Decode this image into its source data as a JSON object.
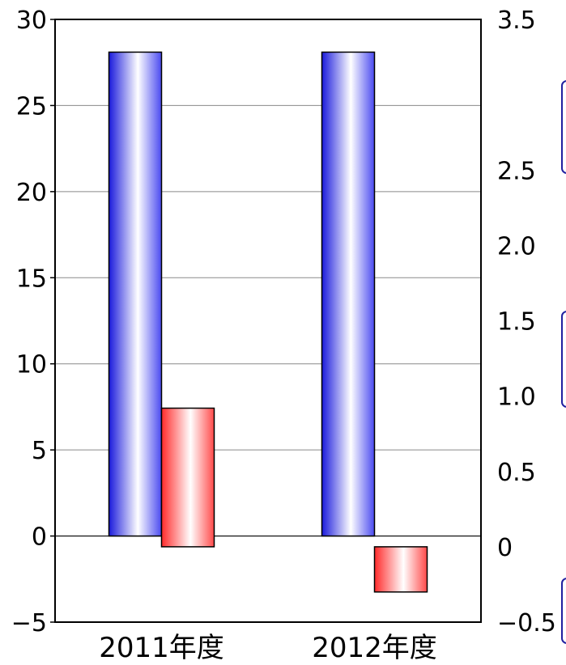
{
  "chart_data": {
    "type": "bar",
    "title": "",
    "xlabel": "",
    "ylabel": "",
    "categories": [
      "2011年度",
      "2012年度"
    ],
    "series": [
      {
        "values": [
          28.1,
          28.1
        ],
        "color": "#2a2ae6",
        "axis": "left"
      },
      {
        "values": [
          0.92,
          -0.3
        ],
        "color": "#ff3030",
        "axis": "right"
      }
    ],
    "ylim_left": [
      -5,
      30
    ],
    "yticks_left": [
      "−5",
      "0",
      "5",
      "10",
      "15",
      "20",
      "25",
      "30"
    ],
    "ylim_right": [
      -0.5,
      3.5
    ],
    "yticks_right": [
      "−0.5",
      "0",
      "0.5",
      "1.0",
      "1.5",
      "2.0",
      "2.5",
      "3.5"
    ],
    "grid": true
  }
}
